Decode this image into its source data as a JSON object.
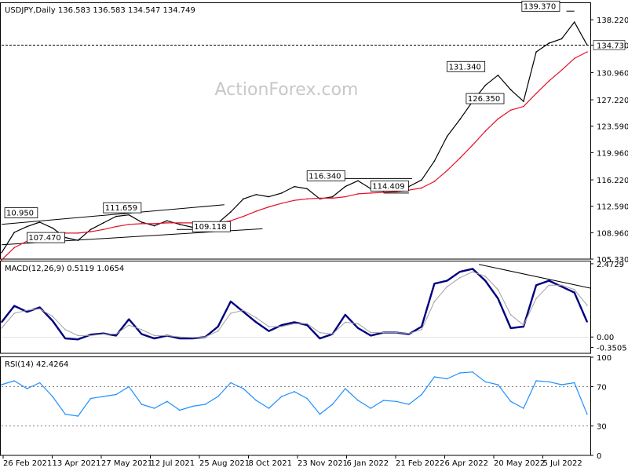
{
  "chart_data": [
    {
      "type": "line",
      "panel": "price",
      "header": "USDJPY,Daily  136.583 136.583 134.547 134.749",
      "watermark": "ActionForex.com",
      "ylim": [
        105.33,
        140.5
      ],
      "yticks": [
        "138.220",
        "134.730",
        "130.960",
        "127.220",
        "123.590",
        "119.960",
        "116.220",
        "112.590",
        "108.960",
        "105.330"
      ],
      "ytick_values": [
        138.22,
        134.73,
        130.96,
        127.22,
        123.59,
        119.96,
        116.22,
        112.59,
        108.96,
        105.33
      ],
      "current_price": 134.73,
      "current_price_label": "134.730",
      "xticks": [
        "26 Feb 2021",
        "13 Apr 2021",
        "27 May 2021",
        "12 Jul 2021",
        "25 Aug 2021",
        "8 Oct 2021",
        "23 Nov 2021",
        "6 Jan 2022",
        "21 Feb 2022",
        "6 Apr 2022",
        "20 May 2022",
        "5 Jul 2022"
      ],
      "x_range": [
        0,
        370
      ],
      "x": [
        0,
        8,
        16,
        24,
        32,
        40,
        48,
        56,
        64,
        72,
        80,
        88,
        96,
        104,
        112,
        120,
        128,
        136,
        144,
        152,
        160,
        168,
        176,
        184,
        192,
        200,
        208,
        216,
        224,
        232,
        240,
        248,
        256,
        264,
        272,
        280,
        288,
        296,
        304,
        312,
        320,
        328,
        336,
        344,
        352,
        360,
        368
      ],
      "series": [
        {
          "name": "",
          "role": "price",
          "color": "#000000",
          "values": [
            106.2,
            109.0,
            109.8,
            110.4,
            109.6,
            108.3,
            107.9,
            109.4,
            110.3,
            111.2,
            111.4,
            110.4,
            109.9,
            110.6,
            110.1,
            109.7,
            109.8,
            110.3,
            111.8,
            113.6,
            114.2,
            113.9,
            114.4,
            115.3,
            115.0,
            113.6,
            113.9,
            115.3,
            116.1,
            115.0,
            114.7,
            115.0,
            115.3,
            116.2,
            118.8,
            122.2,
            124.5,
            127.0,
            129.2,
            130.6,
            128.6,
            127.0,
            133.8,
            135.0,
            135.6,
            137.9,
            134.75
          ]
        },
        {
          "name": "",
          "role": "moving-average",
          "color": "#e3102a",
          "values": [
            105.2,
            106.9,
            107.8,
            108.3,
            108.7,
            108.9,
            108.9,
            109.1,
            109.4,
            109.8,
            110.1,
            110.2,
            110.2,
            110.3,
            110.3,
            110.3,
            110.2,
            110.3,
            110.6,
            111.2,
            111.9,
            112.5,
            113.0,
            113.4,
            113.6,
            113.7,
            113.7,
            113.9,
            114.3,
            114.4,
            114.5,
            114.6,
            114.8,
            115.1,
            116.0,
            117.5,
            119.2,
            121.0,
            122.9,
            124.6,
            125.8,
            126.3,
            128.1,
            129.8,
            131.3,
            132.9,
            133.8
          ]
        }
      ],
      "annotations": [
        {
          "text": "10.950",
          "x": 2,
          "y": 111.2
        },
        {
          "text": "107.470",
          "x": 16,
          "y": 107.8
        },
        {
          "text": "111.659",
          "x": 64,
          "y": 111.9
        },
        {
          "text": "109.118",
          "x": 120,
          "y": 109.3
        },
        {
          "text": "116.340",
          "x": 192,
          "y": 116.3
        },
        {
          "text": "114.409",
          "x": 232,
          "y": 114.9
        },
        {
          "text": "131.340",
          "x": 280,
          "y": 131.3
        },
        {
          "text": "126.350",
          "x": 292,
          "y": 126.9
        },
        {
          "text": "139.370",
          "x": 327,
          "y": 139.6
        }
      ],
      "trendlines": [
        {
          "from": [
            0,
            110.1
          ],
          "to": [
            140,
            112.8
          ]
        },
        {
          "from": [
            0,
            107.3
          ],
          "to": [
            164,
            109.5
          ]
        },
        {
          "from": [
            110,
            109.4
          ],
          "to": [
            140,
            109.4
          ]
        },
        {
          "from": [
            212,
            116.4
          ],
          "to": [
            258,
            116.4
          ]
        },
        {
          "from": [
            240,
            114.4
          ],
          "to": [
            256,
            114.4
          ]
        },
        {
          "from": [
            355,
            139.4
          ],
          "to": [
            360,
            139.4
          ]
        }
      ],
      "grid": false
    },
    {
      "type": "line",
      "panel": "macd",
      "header": "MACD(12,26,9) 0.5119 1.0654",
      "ylim": [
        -0.55,
        2.55
      ],
      "yticks": [
        "2.4729",
        "0.00",
        "-0.3505"
      ],
      "ytick_values": [
        2.4729,
        0.0,
        -0.3505
      ],
      "x_range": [
        0,
        370
      ],
      "x": [
        0,
        8,
        16,
        24,
        32,
        40,
        48,
        56,
        64,
        72,
        80,
        88,
        96,
        104,
        112,
        120,
        128,
        136,
        144,
        152,
        160,
        168,
        176,
        184,
        192,
        200,
        208,
        216,
        224,
        232,
        240,
        248,
        256,
        264,
        272,
        280,
        288,
        296,
        304,
        312,
        320,
        328,
        336,
        344,
        352,
        360,
        368
      ],
      "series": [
        {
          "name": "",
          "role": "macd",
          "color": "#000080",
          "values": [
            0.5,
            1.05,
            0.85,
            1.0,
            0.55,
            -0.05,
            -0.08,
            0.08,
            0.12,
            0.05,
            0.6,
            0.1,
            -0.05,
            0.05,
            -0.05,
            -0.05,
            0.0,
            0.35,
            1.2,
            0.85,
            0.5,
            0.2,
            0.4,
            0.5,
            0.4,
            -0.05,
            0.1,
            0.75,
            0.3,
            0.05,
            0.15,
            0.15,
            0.1,
            0.35,
            1.8,
            1.9,
            2.2,
            2.3,
            1.9,
            1.3,
            0.3,
            0.35,
            1.75,
            1.9,
            1.7,
            1.5,
            0.51
          ]
        },
        {
          "name": "",
          "role": "signal",
          "color": "#a0a0a0",
          "values": [
            0.3,
            0.8,
            0.9,
            0.95,
            0.7,
            0.25,
            0.05,
            0.05,
            0.1,
            0.1,
            0.4,
            0.25,
            0.05,
            0.05,
            0.0,
            -0.02,
            0.0,
            0.2,
            0.8,
            0.9,
            0.65,
            0.35,
            0.35,
            0.45,
            0.45,
            0.15,
            0.1,
            0.5,
            0.45,
            0.15,
            0.15,
            0.15,
            0.12,
            0.25,
            1.2,
            1.7,
            2.0,
            2.2,
            2.05,
            1.6,
            0.75,
            0.4,
            1.3,
            1.75,
            1.75,
            1.6,
            1.07
          ]
        }
      ],
      "trendlines": [
        {
          "from": [
            300,
            2.45
          ],
          "to": [
            370,
            1.65
          ]
        }
      ]
    },
    {
      "type": "line",
      "panel": "rsi",
      "header": "RSI(14) 42.4264",
      "ylim": [
        0,
        100
      ],
      "yticks": [
        "100",
        "70",
        "30",
        "0"
      ],
      "ytick_values": [
        100,
        70,
        30,
        0
      ],
      "levels": [
        70,
        30
      ],
      "x_range": [
        0,
        370
      ],
      "x": [
        0,
        8,
        16,
        24,
        32,
        40,
        48,
        56,
        64,
        72,
        80,
        88,
        96,
        104,
        112,
        120,
        128,
        136,
        144,
        152,
        160,
        168,
        176,
        184,
        192,
        200,
        208,
        216,
        224,
        232,
        240,
        248,
        256,
        264,
        272,
        280,
        288,
        296,
        304,
        312,
        320,
        328,
        336,
        344,
        352,
        360,
        368
      ],
      "series": [
        {
          "name": "",
          "role": "rsi",
          "color": "#1e90ff",
          "values": [
            72,
            76,
            68,
            74,
            60,
            42,
            40,
            58,
            60,
            62,
            70,
            52,
            48,
            55,
            46,
            50,
            52,
            60,
            74,
            68,
            56,
            48,
            60,
            65,
            58,
            42,
            52,
            68,
            56,
            48,
            56,
            55,
            52,
            62,
            80,
            78,
            84,
            85,
            75,
            72,
            55,
            48,
            76,
            75,
            72,
            74,
            42
          ]
        }
      ]
    }
  ]
}
